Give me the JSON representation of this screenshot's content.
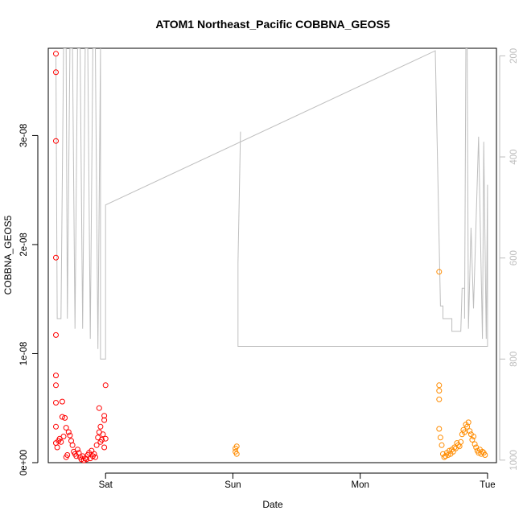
{
  "chart_data": {
    "type": "scatter",
    "title": "ATOM1 Northeast_Pacific COBBNA_GEOS5",
    "xlabel": "Date",
    "ylabel": "COBBNA_GEOS5",
    "x_ticks": [
      "Sat",
      "Sun",
      "Mon",
      "Tue"
    ],
    "y_ticks": [
      "0e+00",
      "1e-08",
      "2e-08",
      "3e-08"
    ],
    "y_tick_values": [
      0,
      1e-08,
      2e-08,
      3e-08
    ],
    "ylim": [
      0,
      3.8e-08
    ],
    "x_unit": "days after Fri 00:00",
    "xlim": [
      0.55,
      4.07
    ],
    "right_axis": {
      "ticks": [
        "200",
        "400",
        "600",
        "800",
        "1000"
      ],
      "tick_values": [
        200,
        400,
        600,
        800,
        1000
      ],
      "ylim_reversed": [
        185,
        1005
      ],
      "color": "#bebebe"
    },
    "colors": {
      "series1": "#ff0000",
      "series2": "#ff8c00",
      "line": "#bebebe"
    },
    "series": [
      {
        "type": "points",
        "color": "#ff0000",
        "points": [
          [
            0.61,
            3.75e-08
          ],
          [
            0.61,
            3.58e-08
          ],
          [
            0.61,
            2.95e-08
          ],
          [
            0.61,
            1.88e-08
          ],
          [
            0.61,
            1.17e-08
          ],
          [
            0.61,
            8e-09
          ],
          [
            0.61,
            7.1e-09
          ],
          [
            0.61,
            5.5e-09
          ],
          [
            0.61,
            3.3e-09
          ],
          [
            0.61,
            1.8e-09
          ],
          [
            0.62,
            1.4e-09
          ],
          [
            0.63,
            2e-09
          ],
          [
            0.64,
            2.2e-09
          ],
          [
            0.65,
            1.9e-09
          ],
          [
            0.66,
            4.2e-09
          ],
          [
            0.66,
            5.6e-09
          ],
          [
            0.67,
            2.4e-09
          ],
          [
            0.68,
            4.1e-09
          ],
          [
            0.69,
            3.2e-09
          ],
          [
            0.69,
            5e-10
          ],
          [
            0.7,
            7e-10
          ],
          [
            0.71,
            2.8e-09
          ],
          [
            0.72,
            2.5e-09
          ],
          [
            0.73,
            2e-09
          ],
          [
            0.74,
            1.6e-09
          ],
          [
            0.75,
            1e-09
          ],
          [
            0.76,
            8e-10
          ],
          [
            0.77,
            6e-10
          ],
          [
            0.78,
            1.2e-09
          ],
          [
            0.79,
            9e-10
          ],
          [
            0.8,
            5e-10
          ],
          [
            0.81,
            3e-10
          ],
          [
            0.82,
            6e-10
          ],
          [
            0.83,
            2e-10
          ],
          [
            0.84,
            4e-10
          ],
          [
            0.85,
            3e-10
          ],
          [
            0.86,
            7e-10
          ],
          [
            0.87,
            9e-10
          ],
          [
            0.88,
            4e-10
          ],
          [
            0.89,
            1.1e-09
          ],
          [
            0.9,
            6e-10
          ],
          [
            0.91,
            8e-10
          ],
          [
            0.92,
            5e-10
          ],
          [
            0.93,
            1.6e-09
          ],
          [
            0.94,
            2.3e-09
          ],
          [
            0.95,
            5e-09
          ],
          [
            0.95,
            2.8e-09
          ],
          [
            0.96,
            3.3e-09
          ],
          [
            0.96,
            1.9e-09
          ],
          [
            0.97,
            2.1e-09
          ],
          [
            0.98,
            2.6e-09
          ],
          [
            0.99,
            4.3e-09
          ],
          [
            0.99,
            3.9e-09
          ],
          [
            1.0,
            7.1e-09
          ],
          [
            0.99,
            1.4e-09
          ],
          [
            1.0,
            2.2e-09
          ]
        ]
      },
      {
        "type": "points",
        "color": "#ff8c00",
        "points": [
          [
            2.02,
            1e-09
          ],
          [
            2.02,
            1.3e-09
          ],
          [
            2.03,
            1.5e-09
          ],
          [
            2.03,
            8e-10
          ],
          [
            3.62,
            1.75e-08
          ],
          [
            3.62,
            7.1e-09
          ],
          [
            3.62,
            6.6e-09
          ],
          [
            3.62,
            5.8e-09
          ],
          [
            3.62,
            3.1e-09
          ],
          [
            3.63,
            2.3e-09
          ],
          [
            3.64,
            1.6e-09
          ],
          [
            3.65,
            8e-10
          ],
          [
            3.66,
            5e-10
          ],
          [
            3.67,
            6e-10
          ],
          [
            3.68,
            9e-10
          ],
          [
            3.69,
            7e-10
          ],
          [
            3.7,
            1.1e-09
          ],
          [
            3.71,
            8e-10
          ],
          [
            3.72,
            1.2e-09
          ],
          [
            3.73,
            1e-09
          ],
          [
            3.74,
            1.4e-09
          ],
          [
            3.75,
            1.3e-09
          ],
          [
            3.76,
            1.8e-09
          ],
          [
            3.77,
            1.6e-09
          ],
          [
            3.78,
            1.5e-09
          ],
          [
            3.79,
            1.9e-09
          ],
          [
            3.8,
            2.6e-09
          ],
          [
            3.81,
            3e-09
          ],
          [
            3.82,
            2.8e-09
          ],
          [
            3.83,
            3.5e-09
          ],
          [
            3.84,
            3.3e-09
          ],
          [
            3.85,
            3.7e-09
          ],
          [
            3.86,
            2.9e-09
          ],
          [
            3.87,
            2.6e-09
          ],
          [
            3.88,
            2.1e-09
          ],
          [
            3.89,
            2.4e-09
          ],
          [
            3.9,
            1.7e-09
          ],
          [
            3.91,
            1.4e-09
          ],
          [
            3.92,
            1.1e-09
          ],
          [
            3.93,
            9e-10
          ],
          [
            3.94,
            1.2e-09
          ],
          [
            3.95,
            8e-10
          ],
          [
            3.96,
            1e-09
          ],
          [
            3.97,
            9e-10
          ],
          [
            3.98,
            7e-10
          ]
        ]
      },
      {
        "type": "line",
        "axis": "right",
        "color": "#bebebe",
        "points": [
          [
            0.61,
            200
          ],
          [
            0.62,
            720
          ],
          [
            0.65,
            720
          ],
          [
            0.67,
            185
          ],
          [
            0.69,
            185
          ],
          [
            0.7,
            720
          ],
          [
            0.72,
            185
          ],
          [
            0.74,
            185
          ],
          [
            0.76,
            740
          ],
          [
            0.78,
            185
          ],
          [
            0.8,
            185
          ],
          [
            0.82,
            740
          ],
          [
            0.84,
            185
          ],
          [
            0.86,
            185
          ],
          [
            0.88,
            760
          ],
          [
            0.9,
            185
          ],
          [
            0.92,
            185
          ],
          [
            0.94,
            780
          ],
          [
            0.96,
            185
          ],
          [
            0.96,
            800
          ],
          [
            1.0,
            800
          ],
          [
            1.0,
            495
          ],
          [
            3.59,
            190
          ],
          [
            3.63,
            695
          ],
          [
            3.65,
            695
          ],
          [
            3.65,
            720
          ],
          [
            3.72,
            720
          ],
          [
            3.72,
            745
          ],
          [
            3.79,
            745
          ],
          [
            3.8,
            660
          ],
          [
            3.82,
            660
          ],
          [
            3.82,
            720
          ],
          [
            3.83,
            185
          ],
          [
            3.84,
            185
          ],
          [
            3.85,
            740
          ],
          [
            3.87,
            540
          ],
          [
            3.89,
            700
          ],
          [
            3.93,
            360
          ],
          [
            3.96,
            760
          ],
          [
            3.97,
            370
          ],
          [
            3.99,
            760
          ],
          [
            4.0,
            455
          ],
          [
            4.0,
            775
          ],
          [
            2.04,
            775
          ],
          [
            2.04,
            610
          ],
          [
            2.06,
            350
          ]
        ]
      }
    ]
  }
}
